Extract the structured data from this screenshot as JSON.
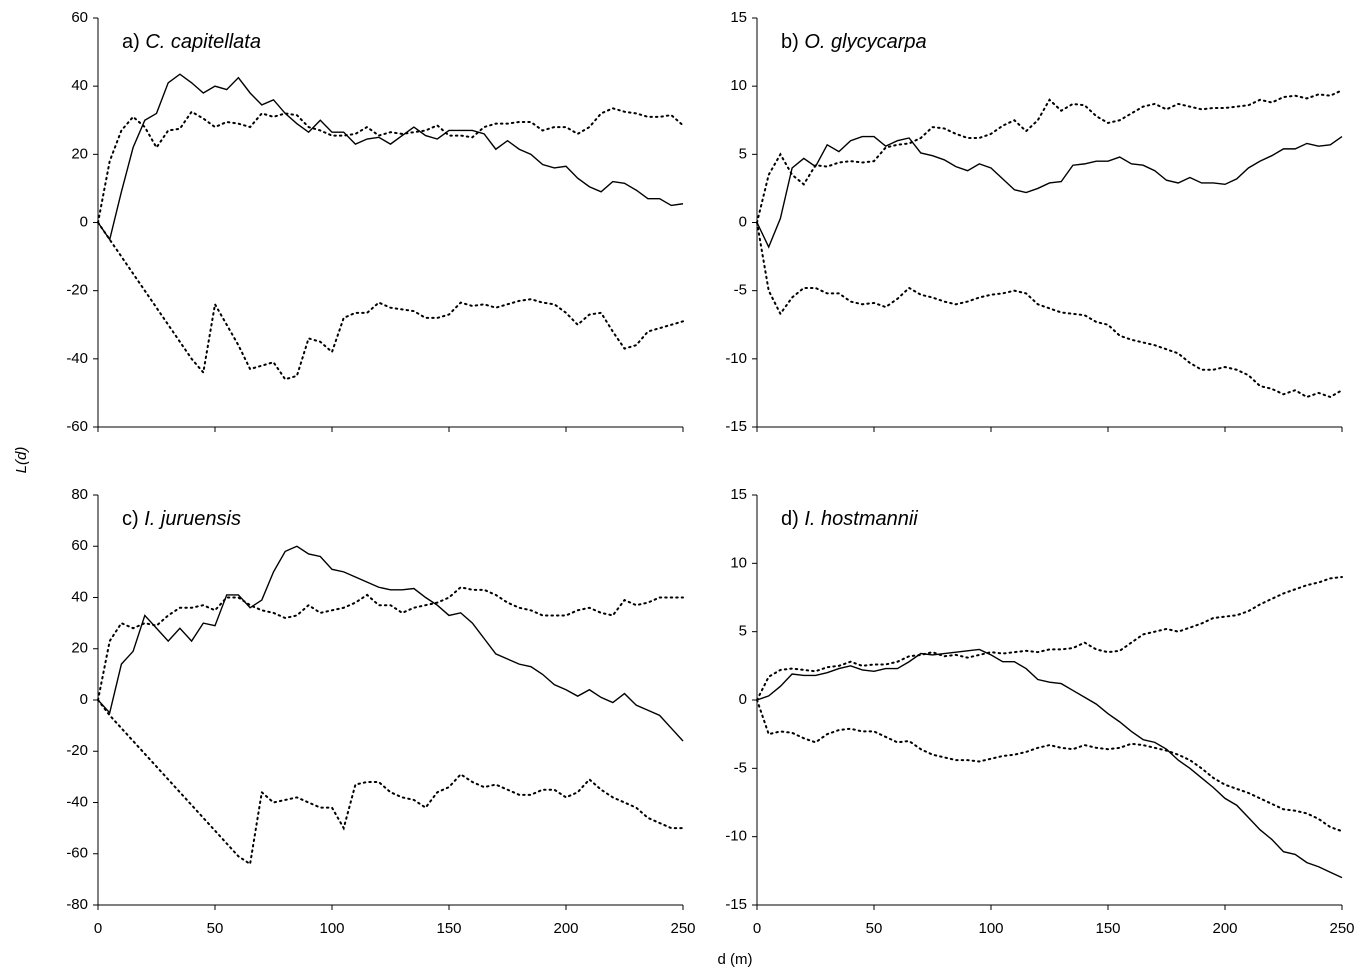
{
  "y_label": "L(d)",
  "x_label": "d (m)",
  "chart_data": [
    {
      "type": "line",
      "panel": "a)",
      "title": "C. capitellata",
      "xlim": [
        0,
        250
      ],
      "xticks": [
        0,
        50,
        100,
        150,
        200,
        250
      ],
      "xtick_labels": false,
      "ylim": [
        -60,
        60
      ],
      "yticks": [
        -60,
        -40,
        -20,
        0,
        20,
        40,
        60
      ],
      "x": [
        0,
        5,
        10,
        15,
        20,
        25,
        30,
        35,
        40,
        45,
        50,
        55,
        60,
        65,
        70,
        75,
        80,
        85,
        90,
        95,
        100,
        105,
        110,
        115,
        120,
        125,
        130,
        135,
        140,
        145,
        150,
        155,
        160,
        165,
        170,
        175,
        180,
        185,
        190,
        195,
        200,
        205,
        210,
        215,
        220,
        225,
        230,
        235,
        240,
        245,
        250
      ],
      "series": [
        {
          "style": "solid",
          "color": "#000000",
          "values": [
            0,
            -5,
            9,
            22,
            30,
            32,
            41,
            43.5,
            41,
            38,
            40,
            39,
            42.5,
            38,
            34.5,
            36,
            32,
            29,
            26.5,
            30,
            26.5,
            26.5,
            23,
            24.5,
            25,
            23,
            25.5,
            28,
            25.5,
            24.5,
            27,
            27,
            27,
            26,
            21.5,
            24,
            21.5,
            20,
            17,
            16,
            16.5,
            13,
            10.5,
            9,
            12,
            11.5,
            9.5,
            7,
            7,
            5,
            5.5
          ]
        },
        {
          "style": "dotted",
          "color": "#000000",
          "values": [
            0,
            18,
            27,
            31,
            28,
            22,
            27,
            27.5,
            32.5,
            30.5,
            28,
            29.5,
            29,
            28,
            32,
            31,
            32,
            31.5,
            28,
            27,
            25.5,
            25.5,
            26,
            28,
            25.5,
            26.5,
            26,
            26.5,
            27,
            28.5,
            25.5,
            25.5,
            25,
            28,
            29,
            29,
            29.5,
            29.5,
            27,
            28,
            28,
            26,
            28,
            32,
            33.5,
            32.5,
            32,
            31,
            31,
            31.5,
            28.5
          ]
        },
        {
          "style": "dotted",
          "color": "#000000",
          "values": [
            0,
            -5,
            -10,
            -15,
            -20,
            -25,
            -30,
            -35,
            -40,
            -44,
            -24,
            -30,
            -36,
            -43,
            -42,
            -41,
            -46,
            -45,
            -34,
            -35,
            -38,
            -28,
            -26.5,
            -26.5,
            -23.5,
            -25,
            -25.5,
            -26,
            -28,
            -28,
            -27,
            -23.5,
            -24.5,
            -24,
            -25,
            -24,
            -23,
            -22.5,
            -23.5,
            -24,
            -26.5,
            -30,
            -27,
            -26.5,
            -32,
            -37,
            -36,
            -32,
            -31,
            -30,
            -29
          ]
        }
      ]
    },
    {
      "type": "line",
      "panel": "b)",
      "title": "O. glycycarpa",
      "xlim": [
        0,
        250
      ],
      "xticks": [
        0,
        50,
        100,
        150,
        200,
        250
      ],
      "xtick_labels": false,
      "ylim": [
        -15,
        15
      ],
      "yticks": [
        -15,
        -10,
        -5,
        0,
        5,
        10,
        15
      ],
      "x": [
        0,
        5,
        10,
        15,
        20,
        25,
        30,
        35,
        40,
        45,
        50,
        55,
        60,
        65,
        70,
        75,
        80,
        85,
        90,
        95,
        100,
        105,
        110,
        115,
        120,
        125,
        130,
        135,
        140,
        145,
        150,
        155,
        160,
        165,
        170,
        175,
        180,
        185,
        190,
        195,
        200,
        205,
        210,
        215,
        220,
        225,
        230,
        235,
        240,
        245,
        250
      ],
      "series": [
        {
          "style": "solid",
          "color": "#000000",
          "values": [
            0,
            -1.8,
            0.3,
            4,
            4.7,
            4.1,
            5.7,
            5.2,
            6,
            6.3,
            6.3,
            5.6,
            6,
            6.2,
            5.1,
            4.9,
            4.6,
            4.1,
            3.8,
            4.3,
            4,
            3.2,
            2.4,
            2.2,
            2.5,
            2.9,
            3,
            4.2,
            4.3,
            4.5,
            4.5,
            4.8,
            4.3,
            4.2,
            3.8,
            3.1,
            2.9,
            3.3,
            2.9,
            2.9,
            2.8,
            3.2,
            4,
            4.5,
            4.9,
            5.4,
            5.4,
            5.8,
            5.6,
            5.7,
            6.3
          ]
        },
        {
          "style": "dotted",
          "color": "#000000",
          "values": [
            0,
            3.5,
            5,
            3.5,
            2.8,
            4.2,
            4.1,
            4.4,
            4.5,
            4.4,
            4.5,
            5.5,
            5.7,
            5.8,
            6.2,
            7,
            6.9,
            6.5,
            6.2,
            6.2,
            6.5,
            7.1,
            7.5,
            6.7,
            7.5,
            9,
            8.2,
            8.7,
            8.6,
            7.8,
            7.3,
            7.5,
            8,
            8.5,
            8.7,
            8.3,
            8.7,
            8.5,
            8.3,
            8.4,
            8.4,
            8.5,
            8.6,
            9,
            8.8,
            9.2,
            9.3,
            9.1,
            9.4,
            9.3,
            9.7
          ]
        },
        {
          "style": "dotted",
          "color": "#000000",
          "values": [
            0,
            -5,
            -6.7,
            -5.5,
            -4.8,
            -4.8,
            -5.2,
            -5.2,
            -5.8,
            -6,
            -5.9,
            -6.2,
            -5.6,
            -4.8,
            -5.3,
            -5.5,
            -5.8,
            -6,
            -5.8,
            -5.5,
            -5.3,
            -5.2,
            -5,
            -5.2,
            -6,
            -6.3,
            -6.6,
            -6.7,
            -6.8,
            -7.3,
            -7.5,
            -8.3,
            -8.6,
            -8.8,
            -9,
            -9.3,
            -9.6,
            -10.3,
            -10.8,
            -10.8,
            -10.6,
            -10.8,
            -11.2,
            -12,
            -12.2,
            -12.6,
            -12.3,
            -12.8,
            -12.5,
            -12.8,
            -12.3
          ]
        }
      ]
    },
    {
      "type": "line",
      "panel": "c)",
      "title": "I. juruensis",
      "xlim": [
        0,
        250
      ],
      "xticks": [
        0,
        50,
        100,
        150,
        200,
        250
      ],
      "xtick_labels": true,
      "ylim": [
        -80,
        80
      ],
      "yticks": [
        -80,
        -60,
        -40,
        -20,
        0,
        20,
        40,
        60,
        80
      ],
      "x": [
        0,
        5,
        10,
        15,
        20,
        25,
        30,
        35,
        40,
        45,
        50,
        55,
        60,
        65,
        70,
        75,
        80,
        85,
        90,
        95,
        100,
        105,
        110,
        115,
        120,
        125,
        130,
        135,
        140,
        145,
        150,
        155,
        160,
        165,
        170,
        175,
        180,
        185,
        190,
        195,
        200,
        205,
        210,
        215,
        220,
        225,
        230,
        235,
        240,
        245,
        250
      ],
      "series": [
        {
          "style": "solid",
          "color": "#000000",
          "values": [
            0,
            -5,
            14,
            19,
            33,
            28,
            23,
            28,
            23,
            30,
            29,
            41,
            41,
            36,
            39,
            50,
            58,
            60,
            57,
            56,
            51,
            50,
            48,
            46,
            44,
            43,
            43,
            43.5,
            40,
            37,
            33,
            34,
            30,
            24,
            18,
            16,
            14,
            13,
            10,
            6,
            4,
            1.5,
            4,
            1,
            -1,
            2.5,
            -2,
            -4,
            -6,
            -11,
            -16
          ]
        },
        {
          "style": "dotted",
          "color": "#000000",
          "values": [
            0,
            23,
            30,
            28,
            30,
            29,
            33,
            36,
            36,
            37,
            35,
            40,
            40,
            37,
            35,
            34,
            32,
            33,
            37,
            34,
            35,
            36,
            38,
            41,
            37,
            37,
            34,
            36,
            37,
            38,
            40,
            44,
            43,
            43,
            41,
            38,
            36,
            35,
            33,
            33,
            33,
            35,
            36,
            34,
            33,
            39,
            37,
            38,
            40,
            40,
            40
          ]
        },
        {
          "style": "dotted",
          "color": "#000000",
          "values": [
            0,
            -6,
            -11,
            -16,
            -21,
            -26,
            -31,
            -36,
            -41,
            -46,
            -51,
            -56,
            -61,
            -64,
            -36,
            -40,
            -39,
            -38,
            -40,
            -42,
            -42,
            -50,
            -33,
            -32,
            -32,
            -36,
            -38,
            -39,
            -42,
            -36,
            -34,
            -29,
            -32,
            -34,
            -33,
            -35,
            -37,
            -37,
            -35,
            -35,
            -38,
            -36,
            -31,
            -35,
            -38,
            -40,
            -42,
            -46,
            -48,
            -50,
            -50
          ]
        }
      ]
    },
    {
      "type": "line",
      "panel": "d)",
      "title": "I. hostmannii",
      "xlim": [
        0,
        250
      ],
      "xticks": [
        0,
        50,
        100,
        150,
        200,
        250
      ],
      "xtick_labels": true,
      "ylim": [
        -15,
        15
      ],
      "yticks": [
        -15,
        -10,
        -5,
        0,
        5,
        10,
        15
      ],
      "x": [
        0,
        5,
        10,
        15,
        20,
        25,
        30,
        35,
        40,
        45,
        50,
        55,
        60,
        65,
        70,
        75,
        80,
        85,
        90,
        95,
        100,
        105,
        110,
        115,
        120,
        125,
        130,
        135,
        140,
        145,
        150,
        155,
        160,
        165,
        170,
        175,
        180,
        185,
        190,
        195,
        200,
        205,
        210,
        215,
        220,
        225,
        230,
        235,
        240,
        245,
        250
      ],
      "series": [
        {
          "style": "solid",
          "color": "#000000",
          "values": [
            0,
            0.3,
            1,
            1.9,
            1.8,
            1.8,
            2,
            2.3,
            2.5,
            2.2,
            2.1,
            2.3,
            2.3,
            2.8,
            3.4,
            3.3,
            3.4,
            3.5,
            3.6,
            3.7,
            3.3,
            2.8,
            2.8,
            2.3,
            1.5,
            1.3,
            1.2,
            0.7,
            0.2,
            -0.3,
            -1,
            -1.6,
            -2.3,
            -2.9,
            -3.1,
            -3.6,
            -4.4,
            -5,
            -5.7,
            -6.4,
            -7.2,
            -7.7,
            -8.6,
            -9.5,
            -10.2,
            -11.1,
            -11.3,
            -11.9,
            -12.2,
            -12.6,
            -13
          ]
        },
        {
          "style": "dotted",
          "color": "#000000",
          "values": [
            0,
            1.7,
            2.2,
            2.3,
            2.2,
            2.1,
            2.4,
            2.5,
            2.8,
            2.5,
            2.6,
            2.6,
            2.8,
            3.2,
            3.3,
            3.5,
            3.2,
            3.3,
            3.1,
            3.3,
            3.5,
            3.4,
            3.5,
            3.6,
            3.5,
            3.7,
            3.7,
            3.8,
            4.2,
            3.7,
            3.5,
            3.6,
            4.2,
            4.8,
            5,
            5.2,
            5,
            5.3,
            5.6,
            6,
            6.1,
            6.2,
            6.5,
            7,
            7.4,
            7.8,
            8.1,
            8.4,
            8.6,
            8.9,
            9
          ]
        },
        {
          "style": "dotted",
          "color": "#000000",
          "values": [
            0,
            -2.5,
            -2.3,
            -2.4,
            -2.8,
            -3.1,
            -2.5,
            -2.2,
            -2.1,
            -2.3,
            -2.3,
            -2.7,
            -3.1,
            -3,
            -3.6,
            -4,
            -4.2,
            -4.4,
            -4.4,
            -4.5,
            -4.3,
            -4.1,
            -4,
            -3.8,
            -3.5,
            -3.3,
            -3.5,
            -3.6,
            -3.3,
            -3.5,
            -3.6,
            -3.5,
            -3.2,
            -3.3,
            -3.5,
            -3.7,
            -4,
            -4.4,
            -5,
            -5.7,
            -6.2,
            -6.5,
            -6.8,
            -7.2,
            -7.6,
            -8,
            -8.1,
            -8.3,
            -8.7,
            -9.3,
            -9.6
          ]
        }
      ]
    }
  ]
}
